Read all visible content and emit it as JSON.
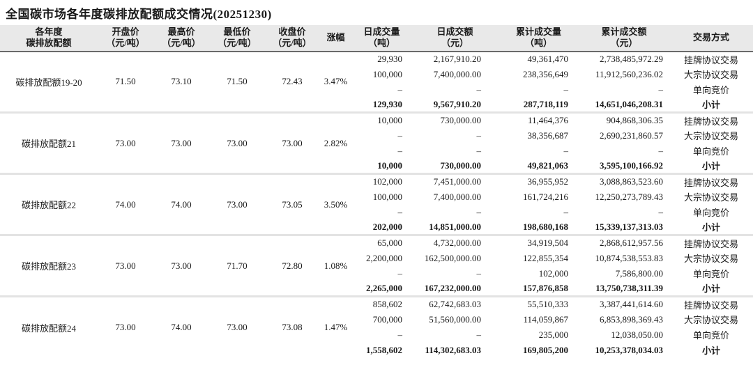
{
  "title": "全国碳市场各年度碳排放配额成交情况(20251230)",
  "colors": {
    "header_background": "#e9e9e9",
    "header_border": "#6a6a6a",
    "group_divider": "#e3e3e3",
    "text": "#1a1a1a",
    "page_background": "#ffffff"
  },
  "table": {
    "headers": [
      {
        "l1": "各年度",
        "l2": "碳排放配额"
      },
      {
        "l1": "开盘价",
        "l2": "（元/吨）"
      },
      {
        "l1": "最高价",
        "l2": "（元/吨）"
      },
      {
        "l1": "最低价",
        "l2": "（元/吨）"
      },
      {
        "l1": "收盘价",
        "l2": "（元/吨）"
      },
      {
        "l1": "涨幅",
        "l2": ""
      },
      {
        "l1": "日成交量",
        "l2": "（吨）"
      },
      {
        "l1": "日成交额",
        "l2": "（元）"
      },
      {
        "l1": "累计成交量",
        "l2": "（吨）"
      },
      {
        "l1": "累计成交额",
        "l2": "（元）"
      },
      {
        "l1": "交易方式",
        "l2": ""
      }
    ],
    "groups": [
      {
        "name": "碳排放配额19-20",
        "open": "71.50",
        "high": "73.10",
        "low": "71.50",
        "close": "72.43",
        "change": "3.47%",
        "rows": [
          {
            "daily_volume": "29,930",
            "daily_amount": "2,167,910.20",
            "cum_volume": "49,361,470",
            "cum_amount": "2,738,485,972.29",
            "method": "挂牌协议交易"
          },
          {
            "daily_volume": "100,000",
            "daily_amount": "7,400,000.00",
            "cum_volume": "238,356,649",
            "cum_amount": "11,912,560,236.02",
            "method": "大宗协议交易"
          },
          {
            "daily_volume": "–",
            "daily_amount": "–",
            "cum_volume": "–",
            "cum_amount": "–",
            "method": "单向竞价"
          },
          {
            "daily_volume": "129,930",
            "daily_amount": "9,567,910.20",
            "cum_volume": "287,718,119",
            "cum_amount": "14,651,046,208.31",
            "method": "小计"
          }
        ]
      },
      {
        "name": "碳排放配额21",
        "open": "73.00",
        "high": "73.00",
        "low": "73.00",
        "close": "73.00",
        "change": "2.82%",
        "rows": [
          {
            "daily_volume": "10,000",
            "daily_amount": "730,000.00",
            "cum_volume": "11,464,376",
            "cum_amount": "904,868,306.35",
            "method": "挂牌协议交易"
          },
          {
            "daily_volume": "–",
            "daily_amount": "–",
            "cum_volume": "38,356,687",
            "cum_amount": "2,690,231,860.57",
            "method": "大宗协议交易"
          },
          {
            "daily_volume": "–",
            "daily_amount": "–",
            "cum_volume": "–",
            "cum_amount": "–",
            "method": "单向竞价"
          },
          {
            "daily_volume": "10,000",
            "daily_amount": "730,000.00",
            "cum_volume": "49,821,063",
            "cum_amount": "3,595,100,166.92",
            "method": "小计"
          }
        ]
      },
      {
        "name": "碳排放配额22",
        "open": "74.00",
        "high": "74.00",
        "low": "73.00",
        "close": "73.05",
        "change": "3.50%",
        "rows": [
          {
            "daily_volume": "102,000",
            "daily_amount": "7,451,000.00",
            "cum_volume": "36,955,952",
            "cum_amount": "3,088,863,523.60",
            "method": "挂牌协议交易"
          },
          {
            "daily_volume": "100,000",
            "daily_amount": "7,400,000.00",
            "cum_volume": "161,724,216",
            "cum_amount": "12,250,273,789.43",
            "method": "大宗协议交易"
          },
          {
            "daily_volume": "–",
            "daily_amount": "–",
            "cum_volume": "–",
            "cum_amount": "–",
            "method": "单向竞价"
          },
          {
            "daily_volume": "202,000",
            "daily_amount": "14,851,000.00",
            "cum_volume": "198,680,168",
            "cum_amount": "15,339,137,313.03",
            "method": "小计"
          }
        ]
      },
      {
        "name": "碳排放配额23",
        "open": "73.00",
        "high": "73.00",
        "low": "71.70",
        "close": "72.80",
        "change": "1.08%",
        "rows": [
          {
            "daily_volume": "65,000",
            "daily_amount": "4,732,000.00",
            "cum_volume": "34,919,504",
            "cum_amount": "2,868,612,957.56",
            "method": "挂牌协议交易"
          },
          {
            "daily_volume": "2,200,000",
            "daily_amount": "162,500,000.00",
            "cum_volume": "122,855,354",
            "cum_amount": "10,874,538,553.83",
            "method": "大宗协议交易"
          },
          {
            "daily_volume": "–",
            "daily_amount": "–",
            "cum_volume": "102,000",
            "cum_amount": "7,586,800.00",
            "method": "单向竞价"
          },
          {
            "daily_volume": "2,265,000",
            "daily_amount": "167,232,000.00",
            "cum_volume": "157,876,858",
            "cum_amount": "13,750,738,311.39",
            "method": "小计"
          }
        ]
      },
      {
        "name": "碳排放配额24",
        "open": "73.00",
        "high": "74.00",
        "low": "73.00",
        "close": "73.08",
        "change": "1.47%",
        "rows": [
          {
            "daily_volume": "858,602",
            "daily_amount": "62,742,683.03",
            "cum_volume": "55,510,333",
            "cum_amount": "3,387,441,614.60",
            "method": "挂牌协议交易"
          },
          {
            "daily_volume": "700,000",
            "daily_amount": "51,560,000.00",
            "cum_volume": "114,059,867",
            "cum_amount": "6,853,898,369.43",
            "method": "大宗协议交易"
          },
          {
            "daily_volume": "–",
            "daily_amount": "–",
            "cum_volume": "235,000",
            "cum_amount": "12,038,050.00",
            "method": "单向竞价"
          },
          {
            "daily_volume": "1,558,602",
            "daily_amount": "114,302,683.03",
            "cum_volume": "169,805,200",
            "cum_amount": "10,253,378,034.03",
            "method": "小计"
          }
        ]
      }
    ]
  }
}
